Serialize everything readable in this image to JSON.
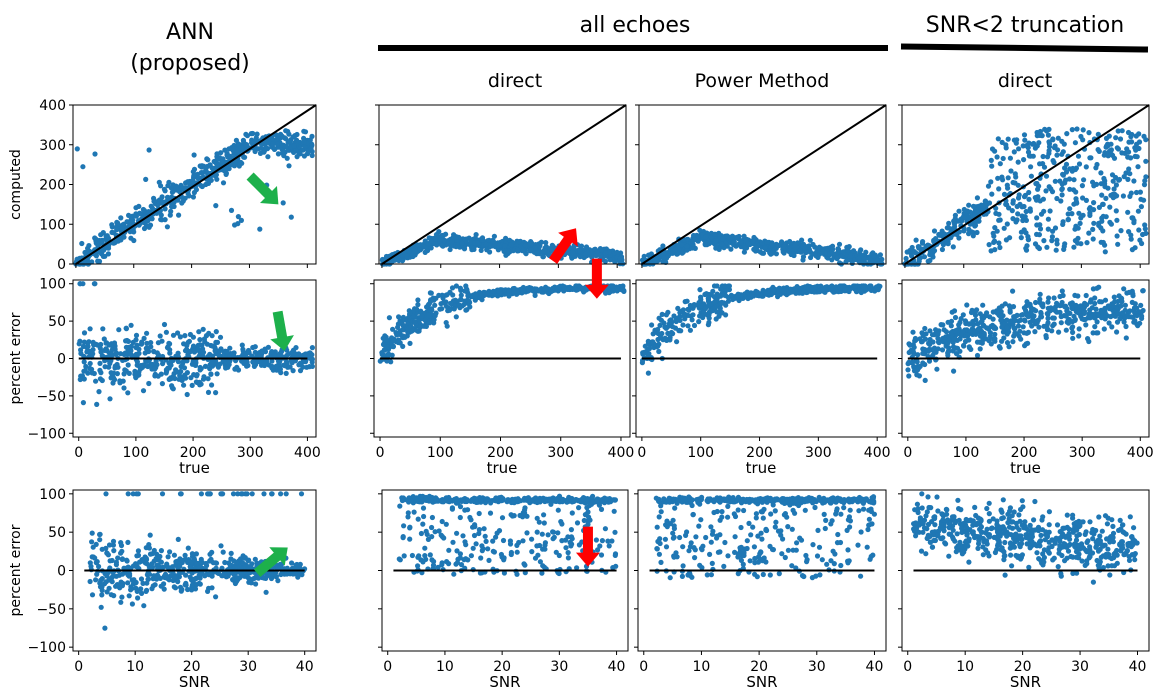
{
  "headers": {
    "ann_line1": "ANN",
    "ann_line2": "(proposed)",
    "all_echoes": "all echoes",
    "snr_trunc": "SNR<2 truncation"
  },
  "subheaders": {
    "direct_1": "direct",
    "power_method": "Power Method",
    "direct_2": "direct"
  },
  "colors": {
    "points": "#1f77b4",
    "line": "#000000",
    "green_arrow": "#1db04b",
    "red_arrow": "#ff0000"
  },
  "chart_data": [
    {
      "id": "ann-computed",
      "type": "scatter",
      "xlabel": "",
      "ylabel": "computed",
      "xlim": [
        -5,
        415
      ],
      "ylim": [
        0,
        400
      ],
      "yticks": [
        "0",
        "100",
        "200",
        "300",
        "400"
      ],
      "xticks": [],
      "reference_line": "y=x",
      "trend": "follows y=x, saturates ~310",
      "annotations": [
        {
          "type": "arrow",
          "color": "green",
          "at": [
            350,
            150
          ]
        }
      ]
    },
    {
      "id": "direct-computed",
      "type": "scatter",
      "xlabel": "",
      "ylabel": "",
      "xlim": [
        -5,
        415
      ],
      "ylim": [
        0,
        400
      ],
      "yticks": [],
      "xticks": [],
      "reference_line": "y=x",
      "trend": "underestimates, rises to ~60 near true=100 then decays to ~20",
      "annotations": [
        {
          "type": "arrow",
          "color": "red",
          "at": [
            330,
            90
          ]
        }
      ]
    },
    {
      "id": "power-computed",
      "type": "scatter",
      "xlabel": "",
      "ylabel": "",
      "xlim": [
        -5,
        415
      ],
      "ylim": [
        0,
        400
      ],
      "yticks": [],
      "xticks": [],
      "reference_line": "y=x",
      "trend": "underestimates, peak ~70 near true=100 then decays"
    },
    {
      "id": "trunc-computed",
      "type": "scatter",
      "xlabel": "",
      "ylabel": "",
      "xlim": [
        -5,
        415
      ],
      "ylim": [
        0,
        400
      ],
      "yticks": [],
      "xticks": [],
      "reference_line": "y=x",
      "trend": "follows y=x up to ~150 then widely scattered 0-350"
    },
    {
      "id": "ann-error-true",
      "type": "scatter",
      "xlabel": "true",
      "ylabel": "percent error",
      "xlim": [
        -10,
        415
      ],
      "ylim": [
        -105,
        105
      ],
      "yticks": [
        "100",
        "50",
        "0",
        "−50",
        "−100"
      ],
      "xticks": [
        "0",
        "100",
        "200",
        "300",
        "400"
      ],
      "reference_line": "y=0",
      "trend": "centered on 0, wider spread at low true values",
      "annotations": [
        {
          "type": "arrow",
          "color": "green",
          "at": [
            360,
            10
          ]
        }
      ]
    },
    {
      "id": "direct-error-true",
      "type": "scatter",
      "xlabel": "true",
      "ylabel": "",
      "xlim": [
        -10,
        415
      ],
      "ylim": [
        -105,
        105
      ],
      "yticks": [],
      "xticks": [
        "0",
        "100",
        "200",
        "300",
        "400"
      ],
      "reference_line": "y=0",
      "trend": "error rises from ~0 to ~95 as true increases",
      "annotations": [
        {
          "type": "arrow",
          "color": "red",
          "at": [
            360,
            80
          ]
        }
      ]
    },
    {
      "id": "power-error-true",
      "type": "scatter",
      "xlabel": "true",
      "ylabel": "",
      "xlim": [
        -10,
        415
      ],
      "ylim": [
        -105,
        105
      ],
      "yticks": [],
      "xticks": [
        "0",
        "100",
        "200",
        "300",
        "400"
      ],
      "reference_line": "y=0",
      "trend": "error rises from ~0 to ~95 as true increases"
    },
    {
      "id": "trunc-error-true",
      "type": "scatter",
      "xlabel": "true",
      "ylabel": "",
      "xlim": [
        -10,
        415
      ],
      "ylim": [
        -105,
        105
      ],
      "yticks": [],
      "xticks": [
        "0",
        "100",
        "200",
        "300",
        "400"
      ],
      "reference_line": "y=0",
      "trend": "error rises from ~0 to ~70 with large spread"
    },
    {
      "id": "ann-error-snr",
      "type": "scatter",
      "xlabel": "SNR",
      "ylabel": "percent error",
      "xlim": [
        -1,
        42
      ],
      "ylim": [
        -105,
        105
      ],
      "yticks": [
        "100",
        "50",
        "0",
        "−50",
        "−100"
      ],
      "xticks": [
        "0",
        "10",
        "20",
        "30",
        "40"
      ],
      "reference_line": "y=0",
      "trend": "centered on 0, spread shrinks with SNR",
      "annotations": [
        {
          "type": "arrow",
          "color": "green",
          "at": [
            37,
            30
          ]
        }
      ]
    },
    {
      "id": "direct-error-snr",
      "type": "scatter",
      "xlabel": "SNR",
      "ylabel": "",
      "xlim": [
        -1,
        42
      ],
      "ylim": [
        -105,
        105
      ],
      "yticks": [],
      "xticks": [
        "0",
        "10",
        "20",
        "30",
        "40"
      ],
      "reference_line": "y=0",
      "trend": "dense band near 95, scattered down to ~0",
      "annotations": [
        {
          "type": "arrow",
          "color": "red",
          "at": [
            35,
            5
          ]
        }
      ]
    },
    {
      "id": "power-error-snr",
      "type": "scatter",
      "xlabel": "SNR",
      "ylabel": "",
      "xlim": [
        -1,
        42
      ],
      "ylim": [
        -105,
        105
      ],
      "yticks": [],
      "xticks": [
        "0",
        "10",
        "20",
        "30",
        "40"
      ],
      "reference_line": "y=0",
      "trend": "dense band near 95, scattered down to ~0"
    },
    {
      "id": "trunc-error-snr",
      "type": "scatter",
      "xlabel": "SNR",
      "ylabel": "",
      "xlim": [
        -1,
        42
      ],
      "ylim": [
        -105,
        105
      ],
      "yticks": [],
      "xticks": [
        "0",
        "10",
        "20",
        "30",
        "40"
      ],
      "reference_line": "y=0",
      "trend": "broad spread 0-100 decreasing slightly with SNR"
    }
  ]
}
